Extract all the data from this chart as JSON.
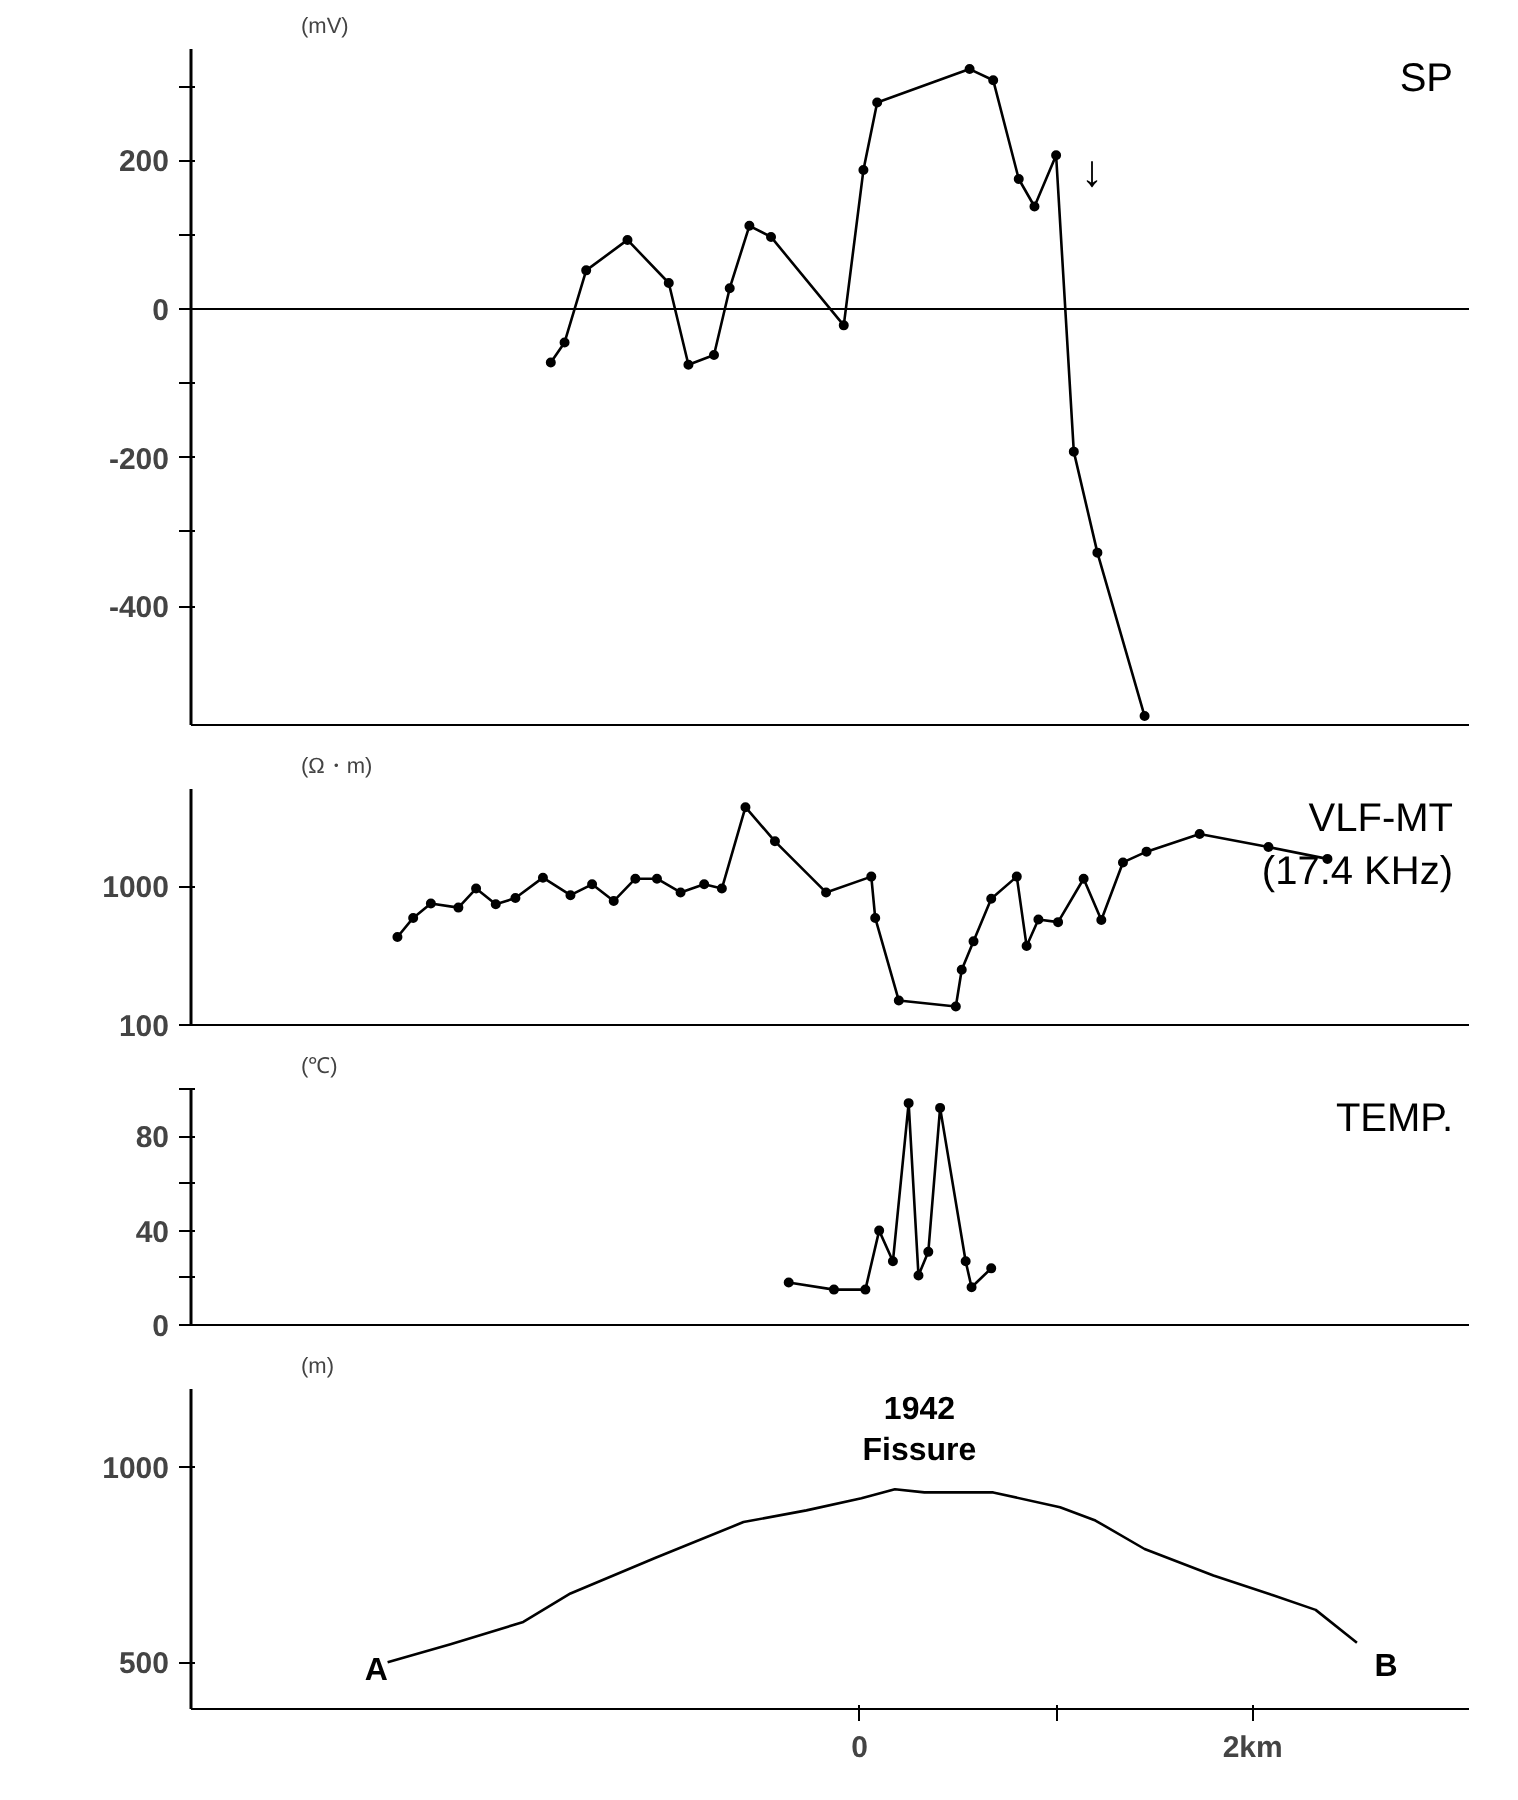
{
  "chart_data": [
    {
      "type": "line",
      "ylabel": "(mV)",
      "x": [
        -1.57,
        -1.5,
        -1.39,
        -1.18,
        -0.97,
        -0.87,
        -0.74,
        -0.66,
        -0.56,
        -0.45,
        -0.08,
        0.02,
        0.09,
        0.56,
        0.68,
        0.81,
        0.89,
        1.0,
        1.09,
        1.21,
        1.45
      ],
      "series": [
        {
          "name": "SP",
          "color": "#000000",
          "values": [
            -72,
            -45,
            52,
            93,
            35,
            -75,
            -62,
            28,
            112,
            97,
            -22,
            187,
            278,
            323,
            308,
            175,
            138,
            207,
            -192,
            -328,
            -548
          ]
        }
      ],
      "xlim": [
        -3.4,
        3.1
      ],
      "ylim": [
        -560,
        350
      ],
      "yticks": [
        -400,
        {
          "value": -300,
          "label": null
        },
        -200,
        {
          "value": -100,
          "label": null
        },
        0,
        {
          "value": 100,
          "label": null
        },
        200,
        {
          "value": 300,
          "label": null
        }
      ],
      "tick_labels": "y",
      "marker": "circle",
      "ref_lines": [
        {
          "axis": "y",
          "value": 0
        }
      ],
      "annotations": [
        "↓"
      ]
    },
    {
      "type": "line",
      "ylabel": "(Ω・m)",
      "x": [
        -2.35,
        -2.27,
        -2.18,
        -2.04,
        -1.95,
        -1.85,
        -1.75,
        -1.61,
        -1.47,
        -1.36,
        -1.25,
        -1.14,
        -1.03,
        -0.91,
        -0.79,
        -0.7,
        -0.58,
        -0.43,
        -0.17,
        0.06,
        0.08,
        0.2,
        0.49,
        0.52,
        0.58,
        0.67,
        0.8,
        0.85,
        0.91,
        1.01,
        1.14,
        1.23,
        1.34,
        1.46,
        1.73,
        2.08,
        2.38
      ],
      "series": [
        {
          "name": "VLF-MT\n(17.4 KHz)",
          "color": "#000000",
          "values": [
            430,
            590,
            750,
            700,
            960,
            740,
            820,
            1150,
            860,
            1030,
            780,
            1130,
            1130,
            900,
            1030,
            960,
            3700,
            2100,
            900,
            1170,
            590,
            150,
            136,
            250,
            400,
            810,
            1170,
            370,
            575,
            550,
            1130,
            570,
            1480,
            1770,
            2370,
            1910,
            1570
          ]
        }
      ],
      "xlim": [
        -3.4,
        3.1
      ],
      "ylim": [
        100,
        5000
      ],
      "yticks": [
        100,
        1000
      ],
      "log": "y",
      "tick_labels": "y",
      "marker": "circle"
    },
    {
      "type": "line",
      "ylabel": "(℃)",
      "x": [
        -0.36,
        -0.13,
        0.03,
        0.1,
        0.17,
        0.25,
        0.3,
        0.35,
        0.41,
        0.54,
        0.57,
        0.67
      ],
      "series": [
        {
          "name": "TEMP.",
          "color": "#000000",
          "values": [
            18,
            15,
            15,
            40,
            27,
            94,
            21,
            31,
            92,
            27,
            16,
            24
          ]
        }
      ],
      "xlim": [
        -3.4,
        3.1
      ],
      "ylim": [
        0,
        100
      ],
      "yticks": [
        0,
        {
          "value": 20,
          "label": null
        },
        40,
        {
          "value": 60,
          "label": null
        },
        80,
        {
          "value": 100,
          "label": null
        }
      ],
      "tick_labels": "y",
      "marker": "circle"
    },
    {
      "type": "line",
      "ylabel": "(m)",
      "x": [
        -2.4,
        -2.08,
        -1.71,
        -1.47,
        -1.04,
        -0.59,
        -0.27,
        0.01,
        0.18,
        0.33,
        0.68,
        1.02,
        1.2,
        1.45,
        1.8,
        2.1,
        2.32,
        2.53
      ],
      "series": [
        {
          "color": "#000000",
          "values": [
            500,
            546,
            603,
            676,
            767,
            859,
            889,
            920,
            943,
            935,
            935,
            897,
            863,
            790,
            722,
            672,
            634,
            550
          ]
        }
      ],
      "xlim": [
        -3.4,
        3.1
      ],
      "ylim": [
        380,
        1200
      ],
      "yticks": [
        500,
        1000
      ],
      "xticks": [
        {
          "value": 0,
          "label": "0"
        },
        {
          "value": 1,
          "label": null
        },
        {
          "value": 2,
          "label": "2km"
        }
      ],
      "marker": "none",
      "annotations": [
        "A",
        "B",
        "1942\nFissure"
      ]
    }
  ]
}
